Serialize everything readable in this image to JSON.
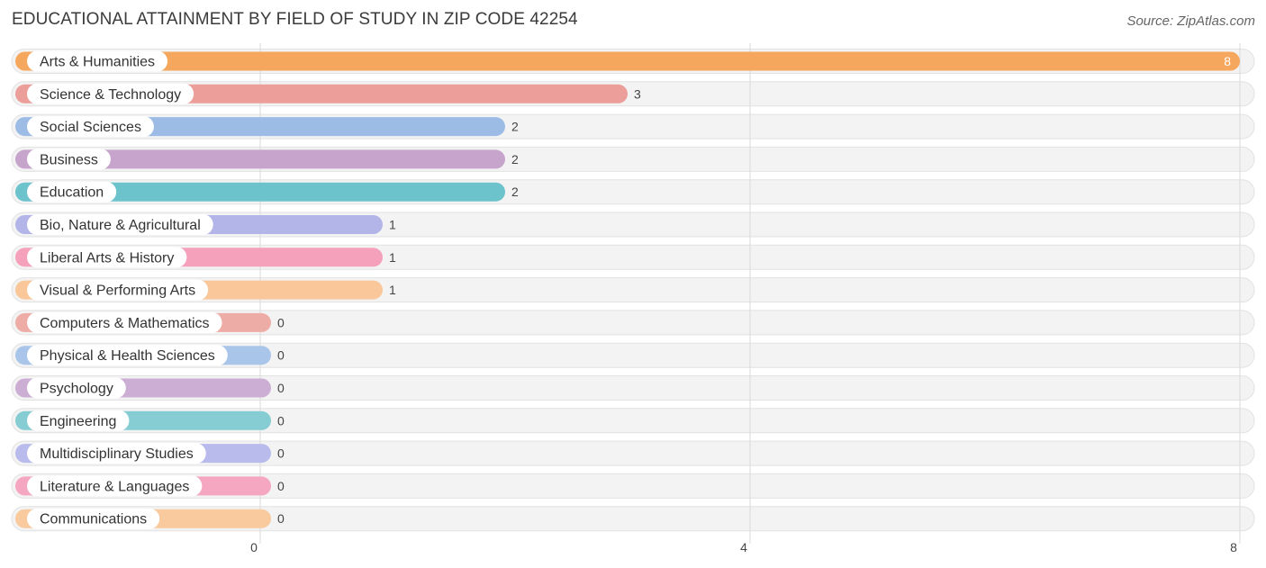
{
  "title": "EDUCATIONAL ATTAINMENT BY FIELD OF STUDY IN ZIP CODE 42254",
  "source": "Source: ZipAtlas.com",
  "chart_data": {
    "type": "bar",
    "orientation": "horizontal",
    "categories": [
      "Arts & Humanities",
      "Science & Technology",
      "Social Sciences",
      "Business",
      "Education",
      "Bio, Nature & Agricultural",
      "Liberal Arts & History",
      "Visual & Performing Arts",
      "Computers & Mathematics",
      "Physical & Health Sciences",
      "Psychology",
      "Engineering",
      "Multidisciplinary Studies",
      "Literature & Languages",
      "Communications"
    ],
    "values": [
      8,
      3,
      2,
      2,
      2,
      1,
      1,
      1,
      0,
      0,
      0,
      0,
      0,
      0,
      0
    ],
    "value_labels": [
      "8",
      "3",
      "2",
      "2",
      "2",
      "1",
      "1",
      "1",
      "0",
      "0",
      "0",
      "0",
      "0",
      "0",
      "0"
    ],
    "colors": [
      "#f6a75e",
      "#eb9e9a",
      "#9cbce6",
      "#c6a4cc",
      "#6cc3cc",
      "#b3b5e8",
      "#f5a1bb",
      "#f9c79a",
      "#eeaca6",
      "#a9c6ea",
      "#ccadd3",
      "#85cdd3",
      "#b8bbec",
      "#f5a6c0",
      "#f9ca9e"
    ],
    "xlim": [
      0,
      8
    ],
    "xticks": [
      "0",
      "4",
      "8"
    ],
    "grid": true
  }
}
